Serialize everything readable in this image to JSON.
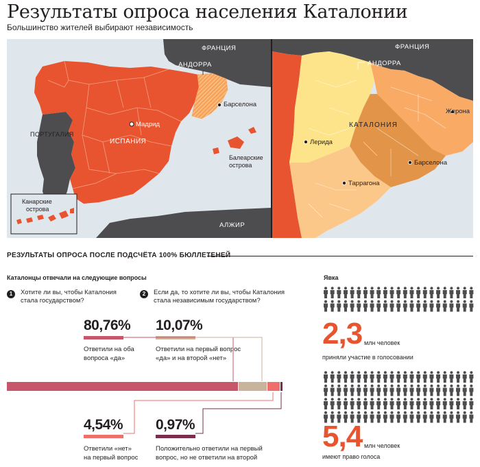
{
  "title": "Результаты опроса населения Каталонии",
  "subtitle": "Большинство жителей выбирают независимость",
  "map_left": {
    "labels": {
      "france": "ФРАНЦИЯ",
      "andorra": "АНДОРРА",
      "barcelona": "Барселона",
      "madrid": "Мадрид",
      "spain": "ИСПАНИЯ",
      "portugal": "ПОРТУГАЛИЯ",
      "balearic_1": "Балеарские",
      "balearic_2": "острова",
      "canary_1": "Канарские",
      "canary_2": "острова",
      "algeria": "АЛЖИР"
    }
  },
  "map_right": {
    "labels": {
      "france": "ФРАНЦИЯ",
      "andorra": "АНДОРРА",
      "catalonia": "КАТАЛОНИЯ",
      "girona": "Жерона",
      "lleida": "Лерида",
      "barcelona": "Барселона",
      "tarragona": "Таррагона"
    }
  },
  "section_heading": "РЕЗУЛЬТАТЫ ОПРОСА ПОСЛЕ ПОДСЧЁТА 100% БЮЛЛЕТЕНЕЙ",
  "questions_heading": "Каталонцы отвечали на следующие вопросы",
  "questions": [
    {
      "num": "1",
      "line1": "Хотите ли вы, чтобы Каталония",
      "line2": "стала государством?"
    },
    {
      "num": "2",
      "line1": "Если да, то хотите ли вы, чтобы Каталония",
      "line2": "стала независимым государством?"
    }
  ],
  "results": [
    {
      "pct": "80,76%",
      "value": 80.76,
      "color": "#c8566a",
      "line1": "Ответили на оба",
      "line2": "вопроса «да»"
    },
    {
      "pct": "10,07%",
      "value": 10.07,
      "color": "#c9b39a",
      "line1": "Ответили на первый вопрос",
      "line2": "«да» и на второй «нет»"
    },
    {
      "pct": "4,54%",
      "value": 4.54,
      "color": "#ef6f6b",
      "line1": "Ответили «нет»",
      "line2": "на первый вопрос"
    },
    {
      "pct": "0,97%",
      "value": 0.97,
      "color": "#7a2e4b",
      "line1": "Положительно ответили на первый",
      "line2": "вопрос, но не ответили на второй"
    }
  ],
  "turnout": {
    "heading": "Явка",
    "participated": {
      "number": "2,3",
      "unit": "млн человек",
      "caption": "приняли участие в голосовании"
    },
    "eligible": {
      "number": "5,4",
      "unit": "млн человек",
      "caption": "имеют право голоса"
    }
  },
  "colors": {
    "spain": "#e8542f",
    "portugal": "#4d4d4f",
    "france": "#4d4d4f",
    "sea": "#dfe6ec",
    "catalonia_hatch": "#f7a35b",
    "lleida": "#fde48a",
    "girona": "#f9ab66",
    "barcelona": "#e29449",
    "tarragona": "#fcc88a",
    "accent": "#e8542f"
  }
}
